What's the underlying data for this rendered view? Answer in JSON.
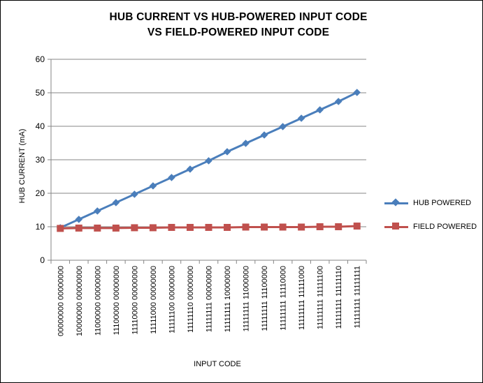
{
  "chart_data": {
    "type": "line",
    "title": "HUB CURRENT VS HUB-POWERED INPUT CODE",
    "subtitle": "VS FIELD-POWERED INPUT CODE",
    "xlabel": "INPUT CODE",
    "ylabel": "HUB CURRENT (mA)",
    "ylim": [
      0,
      60
    ],
    "yticks": [
      0,
      10,
      20,
      30,
      40,
      50,
      60
    ],
    "grid": "horizontal",
    "legend_position": "right",
    "categories": [
      "00000000 00000000",
      "10000000 00000000",
      "11000000 00000000",
      "11100000 00000000",
      "11110000 00000000",
      "11111000 00000000",
      "11111100 00000000",
      "11111110 00000000",
      "11111111 00000000",
      "11111111 10000000",
      "11111111 11000000",
      "11111111 11100000",
      "11111111 11110000",
      "11111111 11111000",
      "11111111 11111100",
      "11111111 11111110",
      "11111111 11111111"
    ],
    "series": [
      {
        "name": "HUB POWERED",
        "color": "#4a7ebb",
        "marker": "diamond",
        "values": [
          9.7,
          12.2,
          14.7,
          17.2,
          19.7,
          22.2,
          24.7,
          27.2,
          29.7,
          32.4,
          34.9,
          37.4,
          39.9,
          42.4,
          44.9,
          47.4,
          50.1
        ]
      },
      {
        "name": "FIELD POWERED",
        "color": "#c0504d",
        "marker": "square",
        "values": [
          9.5,
          9.6,
          9.6,
          9.6,
          9.7,
          9.7,
          9.8,
          9.8,
          9.8,
          9.8,
          9.9,
          9.9,
          9.9,
          9.9,
          10.0,
          10.0,
          10.2
        ]
      }
    ]
  }
}
